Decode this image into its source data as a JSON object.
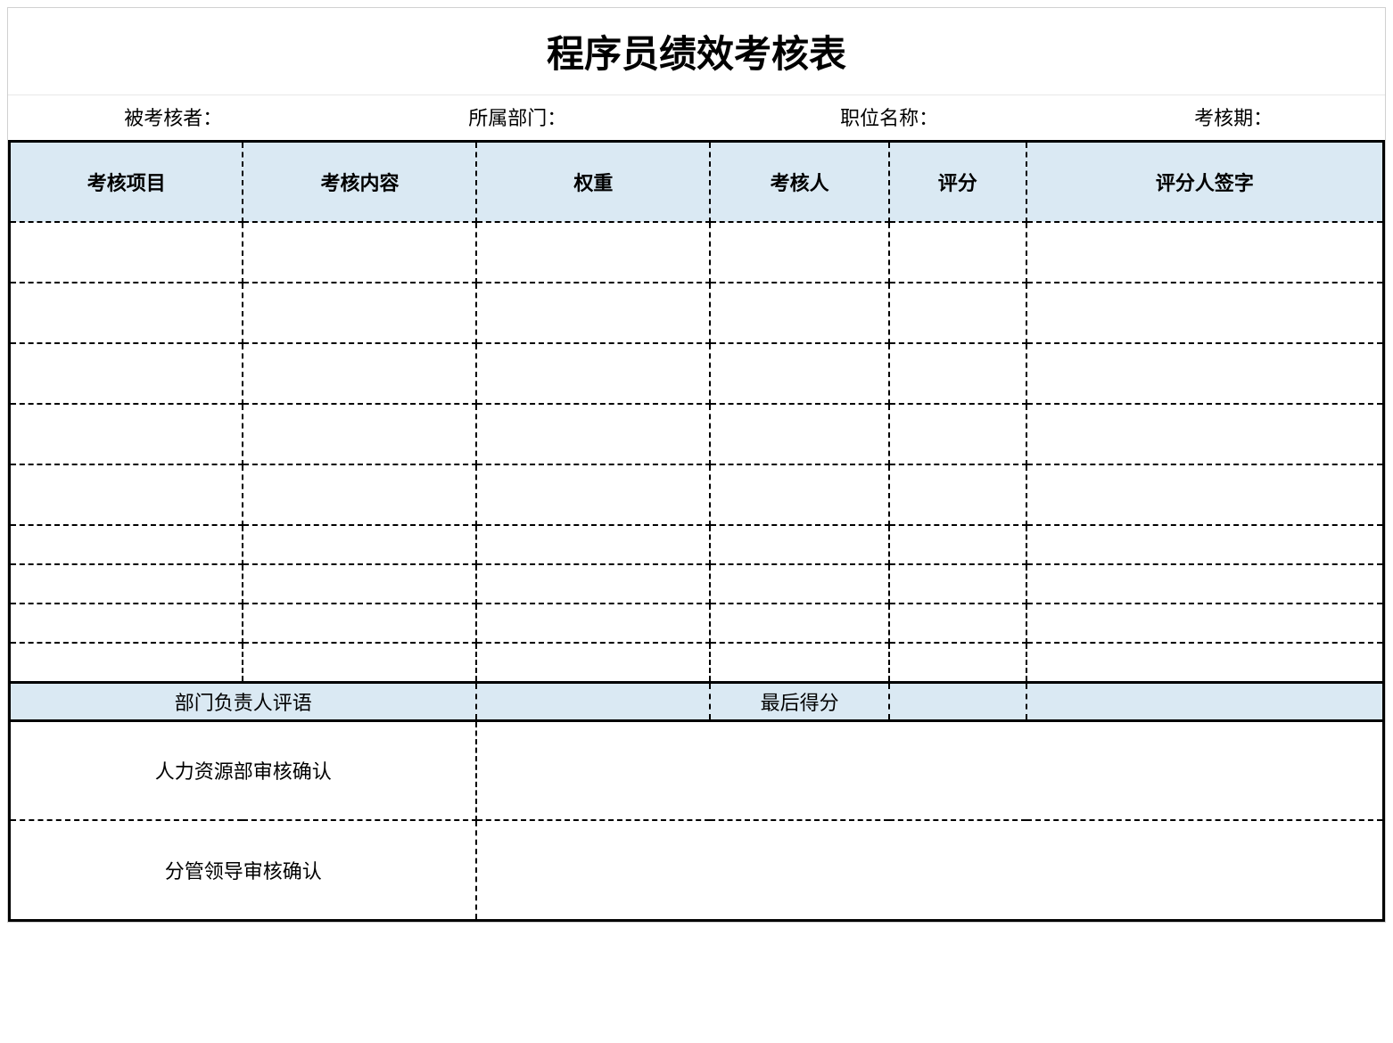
{
  "title": "程序员绩效考核表",
  "info": {
    "assessee_label": "被考核者：",
    "department_label": "所属部门：",
    "position_label": "职位名称：",
    "period_label": "考核期："
  },
  "headers": {
    "col1": "考核项目",
    "col2": "考核内容",
    "col3": "权重",
    "col4": "考核人",
    "col5": "评分",
    "col6": "评分人签字"
  },
  "summary": {
    "dept_comment_label": "部门负责人评语",
    "final_score_label": "最后得分"
  },
  "approval": {
    "hr_label": "人力资源部审核确认",
    "leader_label": "分管领导审核确认"
  },
  "styling": {
    "header_bg": "#dae9f3",
    "border_color": "#000000",
    "title_fontsize": 42,
    "header_fontsize": 22,
    "body_fontsize": 22,
    "data_rows": 9,
    "tall_rows_count": 5,
    "short_rows_count": 4,
    "column_widths_percent": [
      17,
      17,
      17,
      13,
      10,
      26
    ],
    "approval_row_height": 112,
    "summary_row_height": 42,
    "border_style_outer": "solid",
    "border_style_inner": "dashed"
  }
}
